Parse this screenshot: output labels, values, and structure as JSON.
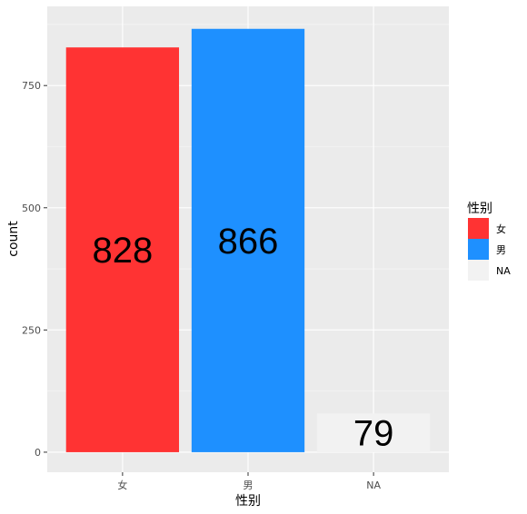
{
  "chart_data": {
    "type": "bar",
    "categories": [
      "女",
      "男",
      "NA"
    ],
    "values": [
      828,
      866,
      79
    ],
    "colors": [
      "#ff3333",
      "#1e90ff",
      "#f2f2f2"
    ],
    "data_labels": [
      "828",
      "866",
      "79"
    ],
    "xlabel": "性别",
    "ylabel": "count",
    "yticks": [
      0,
      250,
      500,
      750
    ],
    "ytick_labels": [
      "0",
      "250",
      "500",
      "750"
    ],
    "ylim": [
      -41,
      912
    ],
    "grid": true,
    "panel_background": "#ebebeb",
    "legend": {
      "title": "性别",
      "position": "right",
      "entries": [
        "女",
        "男",
        "NA"
      ]
    }
  }
}
